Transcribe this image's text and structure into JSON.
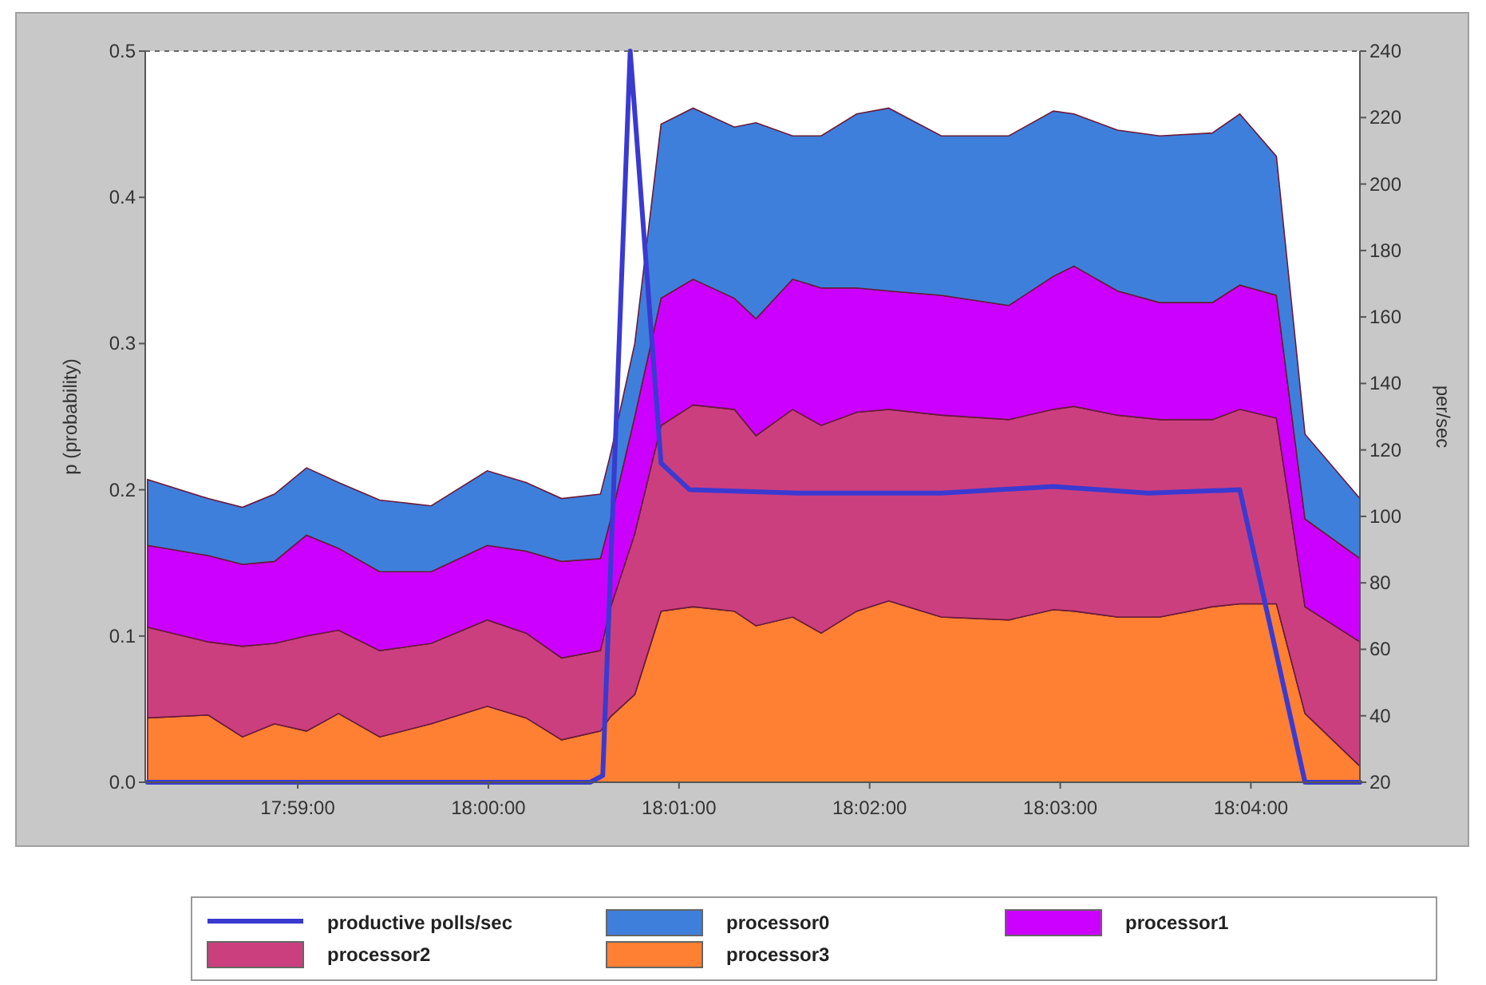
{
  "chart_data": {
    "type": "area",
    "stacked": true,
    "ylabel": "p (probability)",
    "y2label": "per/sec",
    "x": [
      17.9702,
      17.9755,
      17.9785,
      17.9813,
      17.9841,
      17.9869,
      17.9905,
      17.995,
      17.9999,
      18.0033,
      18.0064,
      18.0098,
      18.0107,
      18.0128,
      18.0151,
      18.0179,
      18.0215,
      18.0234,
      18.0266,
      18.0291,
      18.0322,
      18.035,
      18.0396,
      18.0455,
      18.0494,
      18.0512,
      18.055,
      18.0587,
      18.0633,
      18.0657,
      18.0689,
      18.0714,
      18.0762
    ],
    "xlim": [
      17.97,
      18.0762
    ],
    "xticks": [
      {
        "value": 17.983333,
        "label": "17:59:00"
      },
      {
        "value": 18.0,
        "label": "18:00:00"
      },
      {
        "value": 18.016667,
        "label": "18:01:00"
      },
      {
        "value": 18.033333,
        "label": "18:02:00"
      },
      {
        "value": 18.05,
        "label": "18:03:00"
      },
      {
        "value": 18.066667,
        "label": "18:04:00"
      }
    ],
    "ylim": [
      0,
      0.5
    ],
    "yticks": [
      {
        "value": 0,
        "label": "0.0"
      },
      {
        "value": 0.1,
        "label": "0.1"
      },
      {
        "value": 0.2,
        "label": "0.2"
      },
      {
        "value": 0.3,
        "label": "0.3"
      },
      {
        "value": 0.4,
        "label": "0.4"
      },
      {
        "value": 0.5,
        "label": "0.5"
      }
    ],
    "y2lim": [
      20,
      240
    ],
    "y2ticks": [
      20,
      40,
      60,
      80,
      100,
      120,
      140,
      160,
      180,
      200,
      220,
      240
    ],
    "legend": "bottom",
    "series": [
      {
        "name": "processor3",
        "color": "#ff8033",
        "values": [
          0.044,
          0.046,
          0.031,
          0.04,
          0.035,
          0.047,
          0.031,
          0.04,
          0.052,
          0.044,
          0.029,
          0.035,
          0.045,
          0.06,
          0.117,
          0.12,
          0.117,
          0.107,
          0.113,
          0.102,
          0.117,
          0.124,
          0.113,
          0.111,
          0.118,
          0.117,
          0.113,
          0.113,
          0.12,
          0.122,
          0.122,
          0.047,
          0.011
        ]
      },
      {
        "name": "processor2",
        "color": "#cc3f7f",
        "values": [
          0.062,
          0.05,
          0.062,
          0.055,
          0.065,
          0.057,
          0.059,
          0.055,
          0.059,
          0.058,
          0.056,
          0.055,
          0.075,
          0.11,
          0.127,
          0.138,
          0.138,
          0.13,
          0.142,
          0.142,
          0.136,
          0.131,
          0.138,
          0.137,
          0.137,
          0.14,
          0.138,
          0.135,
          0.128,
          0.133,
          0.127,
          0.073,
          0.085
        ]
      },
      {
        "name": "processor1",
        "color": "#cc00ff",
        "values": [
          0.056,
          0.059,
          0.056,
          0.056,
          0.069,
          0.056,
          0.054,
          0.049,
          0.051,
          0.056,
          0.066,
          0.063,
          0.06,
          0.08,
          0.087,
          0.086,
          0.076,
          0.08,
          0.089,
          0.094,
          0.085,
          0.081,
          0.082,
          0.078,
          0.091,
          0.096,
          0.085,
          0.08,
          0.08,
          0.085,
          0.084,
          0.06,
          0.057
        ]
      },
      {
        "name": "processor0",
        "color": "#3f7fdc",
        "values": [
          0.045,
          0.039,
          0.039,
          0.046,
          0.046,
          0.045,
          0.049,
          0.045,
          0.051,
          0.047,
          0.043,
          0.044,
          0.045,
          0.05,
          0.119,
          0.117,
          0.117,
          0.134,
          0.098,
          0.104,
          0.119,
          0.125,
          0.109,
          0.116,
          0.113,
          0.104,
          0.11,
          0.114,
          0.116,
          0.117,
          0.095,
          0.058,
          0.041
        ]
      },
      {
        "name": "productive polls/sec",
        "type": "line",
        "axis": "y2",
        "color": "#3a3ad0",
        "x": [
          17.9702,
          18.0089,
          18.01,
          18.0124,
          18.0151,
          18.0176,
          18.0271,
          18.0396,
          18.0494,
          18.0577,
          18.0657,
          18.0714,
          18.0762
        ],
        "values": [
          20,
          20,
          22,
          240,
          116,
          108,
          107,
          107,
          109,
          107,
          108,
          20,
          20
        ]
      }
    ]
  }
}
